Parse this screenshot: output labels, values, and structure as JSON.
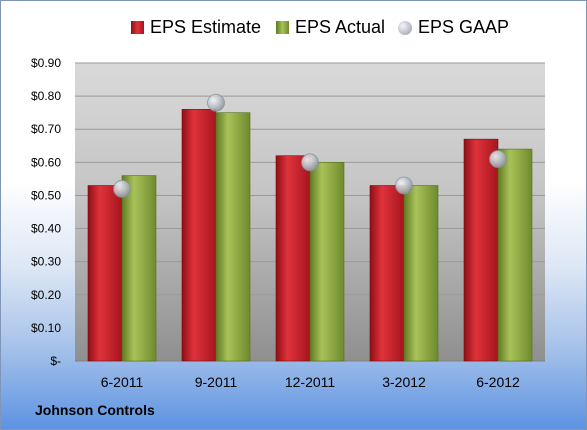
{
  "chart_data": {
    "type": "bar",
    "categories": [
      "6-2011",
      "9-2011",
      "12-2011",
      "3-2012",
      "6-2012"
    ],
    "series": [
      {
        "name": "EPS Estimate",
        "kind": "bar",
        "color": "#c0202a",
        "values": [
          0.53,
          0.76,
          0.62,
          0.53,
          0.67
        ]
      },
      {
        "name": "EPS Actual",
        "kind": "bar",
        "color": "#8aa53c",
        "values": [
          0.56,
          0.75,
          0.6,
          0.53,
          0.64
        ]
      },
      {
        "name": "EPS GAAP",
        "kind": "marker",
        "color": "#b7bcc4",
        "values": [
          0.52,
          0.78,
          0.6,
          0.53,
          0.61
        ]
      }
    ],
    "ylim": [
      0,
      0.9
    ],
    "yticks": [
      0,
      0.1,
      0.2,
      0.3,
      0.4,
      0.5,
      0.6,
      0.7,
      0.8,
      0.9
    ],
    "ytick_labels": [
      "$-",
      "$0.10",
      "$0.20",
      "$0.30",
      "$0.40",
      "$0.50",
      "$0.60",
      "$0.70",
      "$0.80",
      "$0.90"
    ],
    "legend_position": "top",
    "grid": true
  },
  "footer": {
    "company": "Johnson Controls"
  }
}
